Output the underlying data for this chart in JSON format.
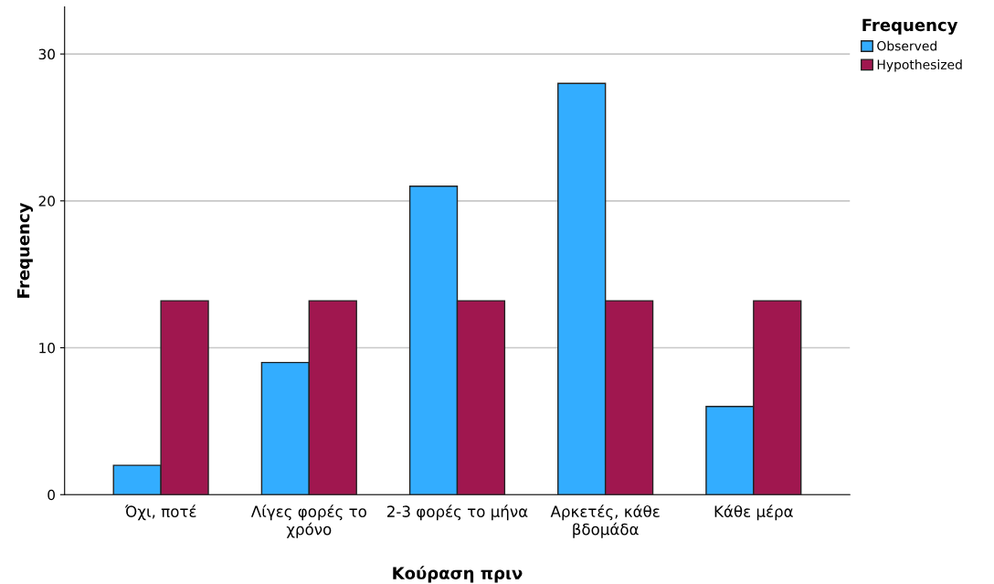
{
  "chart_data": {
    "type": "bar",
    "xlabel": "Κούραση πριν",
    "ylabel": "Frequency",
    "legend_title": "Frequency",
    "categories": [
      "Όχι, ποτέ",
      "Λίγες φορές το χρόνο",
      "2-3 φορές το μήνα",
      "Αρκετές, κάθε βδομάδα",
      "Κάθε μέρα"
    ],
    "series": [
      {
        "name": "Observed",
        "color": "#33adff",
        "values": [
          2,
          9,
          21,
          28,
          6
        ]
      },
      {
        "name": "Hypothesized",
        "color": "#a0174f",
        "values": [
          13.2,
          13.2,
          13.2,
          13.2,
          13.2
        ]
      }
    ],
    "ylim": [
      0,
      33.2
    ],
    "yticks": [
      0,
      10,
      20,
      30
    ],
    "grid": "y",
    "legend": "top right"
  }
}
